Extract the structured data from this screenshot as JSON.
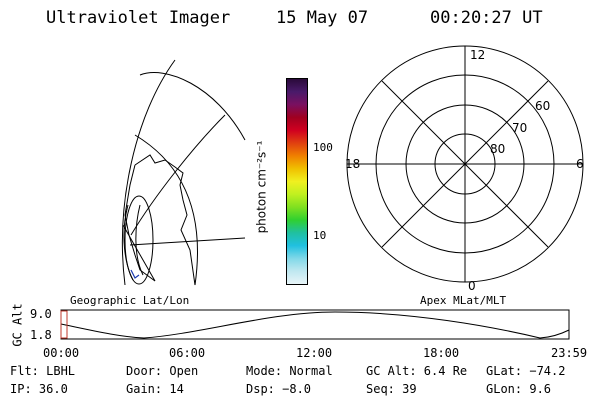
{
  "header": {
    "instrument": "Ultraviolet Imager",
    "date": "15 May 07",
    "time": "00:20:27 UT"
  },
  "colorbar": {
    "unit_label": "photon cm⁻²s⁻¹",
    "tick_labels": [
      "100",
      "10"
    ],
    "colors": [
      "#2a0a3a",
      "#4a1a6a",
      "#7a1060",
      "#a00020",
      "#d00020",
      "#e04010",
      "#f08000",
      "#f0c000",
      "#f0f020",
      "#c0f020",
      "#80e020",
      "#30d030",
      "#20c0a0",
      "#20c0e0",
      "#80d8e8",
      "#c0e8f0",
      "#e8f4f8"
    ]
  },
  "left_panel": {
    "caption": "Geographic Lat/Lon"
  },
  "right_panel": {
    "caption": "Apex MLat/MLT",
    "mlt_labels": {
      "top": "12",
      "right": "6",
      "bottom": "0",
      "left": "18"
    },
    "mlat_labels": [
      "60",
      "70",
      "80"
    ]
  },
  "timeline": {
    "ylabel": "GC Alt",
    "ytick_top": "9.0",
    "ytick_bottom": "1.8",
    "xticks": [
      "00:00",
      "06:00",
      "12:00",
      "18:00",
      "23:59"
    ]
  },
  "info": {
    "filter": "Flt: LBHL",
    "door": "Door: Open",
    "mode": "Mode: Normal",
    "gc_alt": "GC Alt: 6.4 Re",
    "glat": "GLat: −74.2",
    "ip": "IP: 36.0",
    "gain": "Gain: 14",
    "dsp": "Dsp:   −8.0",
    "seq": "Seq: 39",
    "glon": "GLon:  9.6"
  }
}
